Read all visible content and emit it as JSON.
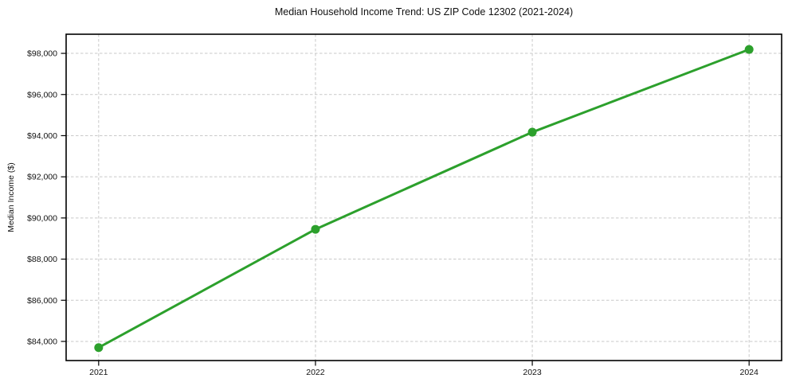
{
  "chart_data": {
    "type": "line",
    "title": "Median Household Income Trend: US ZIP Code 12302 (2021-2024)",
    "xlabel": "",
    "ylabel": "Median Income ($)",
    "x": [
      2021,
      2022,
      2023,
      2024
    ],
    "x_tick_labels": [
      "2021",
      "2022",
      "2023",
      "2024"
    ],
    "values": [
      83700,
      89450,
      94170,
      98190
    ],
    "yticks": [
      84000,
      86000,
      88000,
      90000,
      92000,
      94000,
      96000,
      98000
    ],
    "ytick_labels": [
      "$84,000",
      "$86,000",
      "$88,000",
      "$90,000",
      "$92,000",
      "$94,000",
      "$96,000",
      "$98,000"
    ],
    "xlim": [
      2020.85,
      2024.15
    ],
    "ylim": [
      83070,
      98930
    ],
    "grid": true,
    "legend": "none",
    "line_color": "#2ca02c",
    "marker": "circle",
    "grid_color": "#c9c9c9",
    "axis_color": "#000000",
    "text_color": "#111111",
    "background": "#ffffff"
  }
}
